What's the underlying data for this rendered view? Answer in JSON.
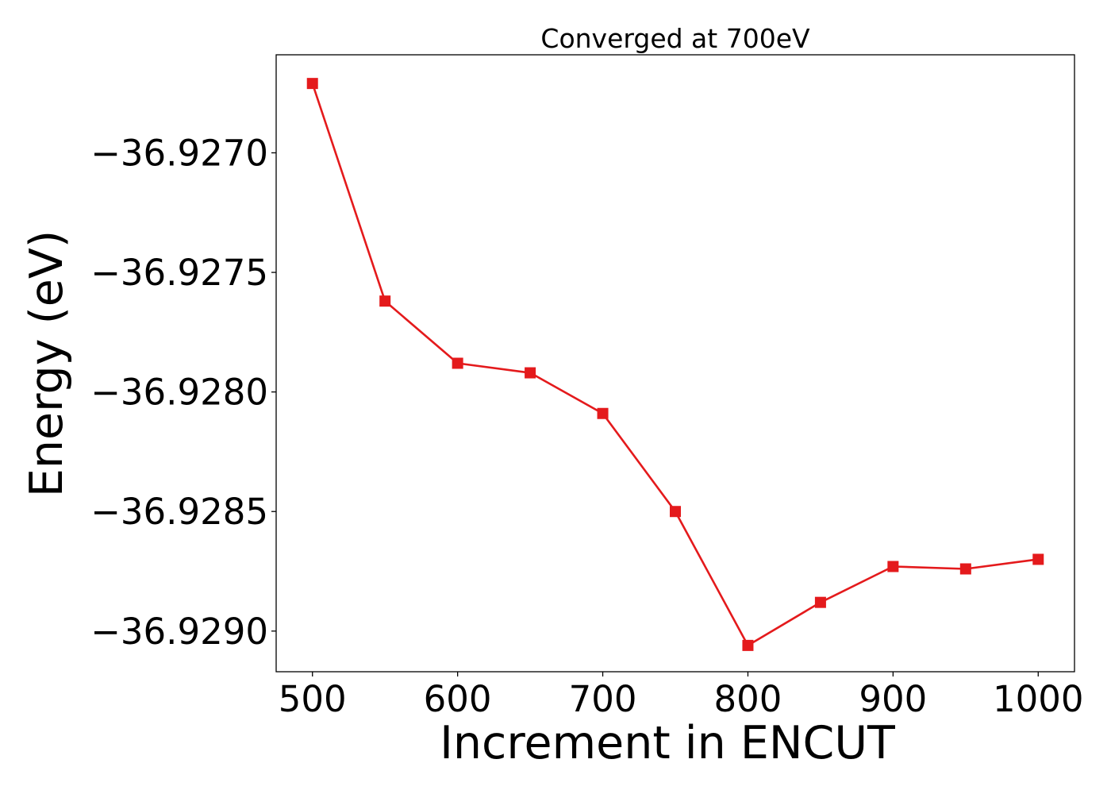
{
  "chart_data": {
    "type": "line",
    "title": "Converged at 700eV",
    "xlabel": "Increment in ENCUT",
    "ylabel": "Energy (eV)",
    "xlim": [
      475,
      1025
    ],
    "ylim": [
      -36.92917,
      -36.92659
    ],
    "xticks": [
      500,
      600,
      700,
      800,
      900,
      1000
    ],
    "xtick_labels": [
      "500",
      "600",
      "700",
      "800",
      "900",
      "1000"
    ],
    "yticks": [
      -36.929,
      -36.9285,
      -36.928,
      -36.9275,
      -36.927
    ],
    "ytick_labels": [
      "−36.9290",
      "−36.9285",
      "−36.9280",
      "−36.9275",
      "−36.9270"
    ],
    "grid": false,
    "series": [
      {
        "color": "#e41a1c",
        "marker": "square",
        "x": [
          500,
          550,
          600,
          650,
          700,
          750,
          800,
          850,
          900,
          950,
          1000
        ],
        "y": [
          -36.92671,
          -36.92762,
          -36.92788,
          -36.92792,
          -36.92809,
          -36.9285,
          -36.92906,
          -36.92888,
          -36.92873,
          -36.92874,
          -36.9287
        ]
      }
    ]
  }
}
